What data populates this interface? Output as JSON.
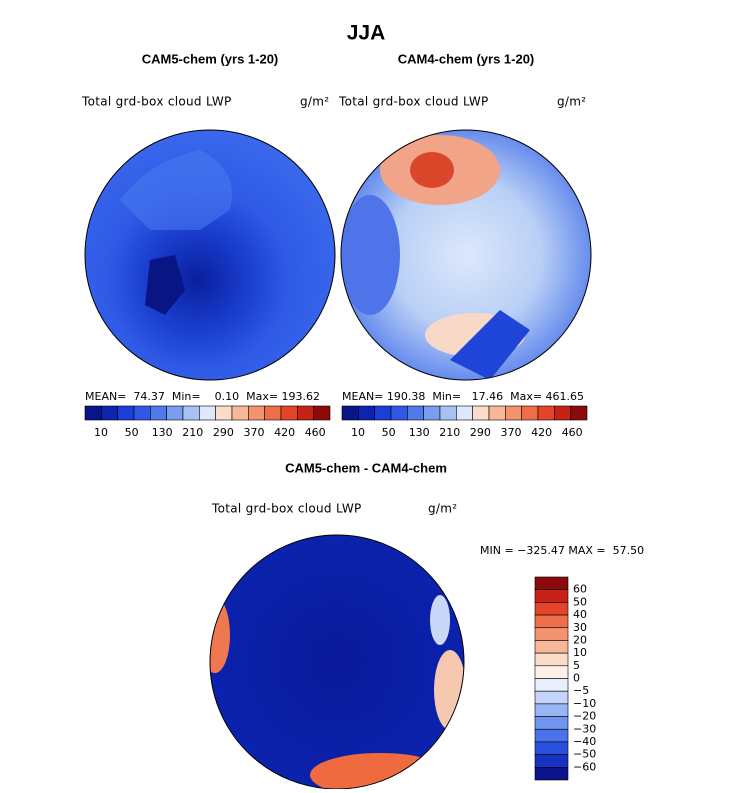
{
  "title": "JJA",
  "panels": [
    {
      "title": "CAM5-chem (yrs 1-20)",
      "field": "Total grd-box cloud LWP",
      "units": "g/m²",
      "stats": "MEAN=  74.37  Min=    0.10  Max= 193.62",
      "colorbar": [
        "10",
        "50",
        "130",
        "210",
        "290",
        "370",
        "420",
        "460"
      ]
    },
    {
      "title": "CAM4-chem (yrs 1-20)",
      "field": "Total grd-box cloud LWP",
      "units": "g/m²",
      "stats": "MEAN= 190.38  Min=   17.46  Max= 461.65",
      "colorbar": [
        "10",
        "50",
        "130",
        "210",
        "290",
        "370",
        "420",
        "460"
      ]
    }
  ],
  "difference": {
    "title": "CAM5-chem - CAM4-chem",
    "field": "Total grd-box cloud LWP",
    "units": "g/m²",
    "stats": "MIN = −325.47 MAX =  57.50",
    "colorbar": [
      "60",
      "50",
      "40",
      "30",
      "20",
      "10",
      "5",
      "0",
      "−5",
      "−10",
      "−20",
      "−30",
      "−40",
      "−50",
      "−60"
    ]
  }
}
